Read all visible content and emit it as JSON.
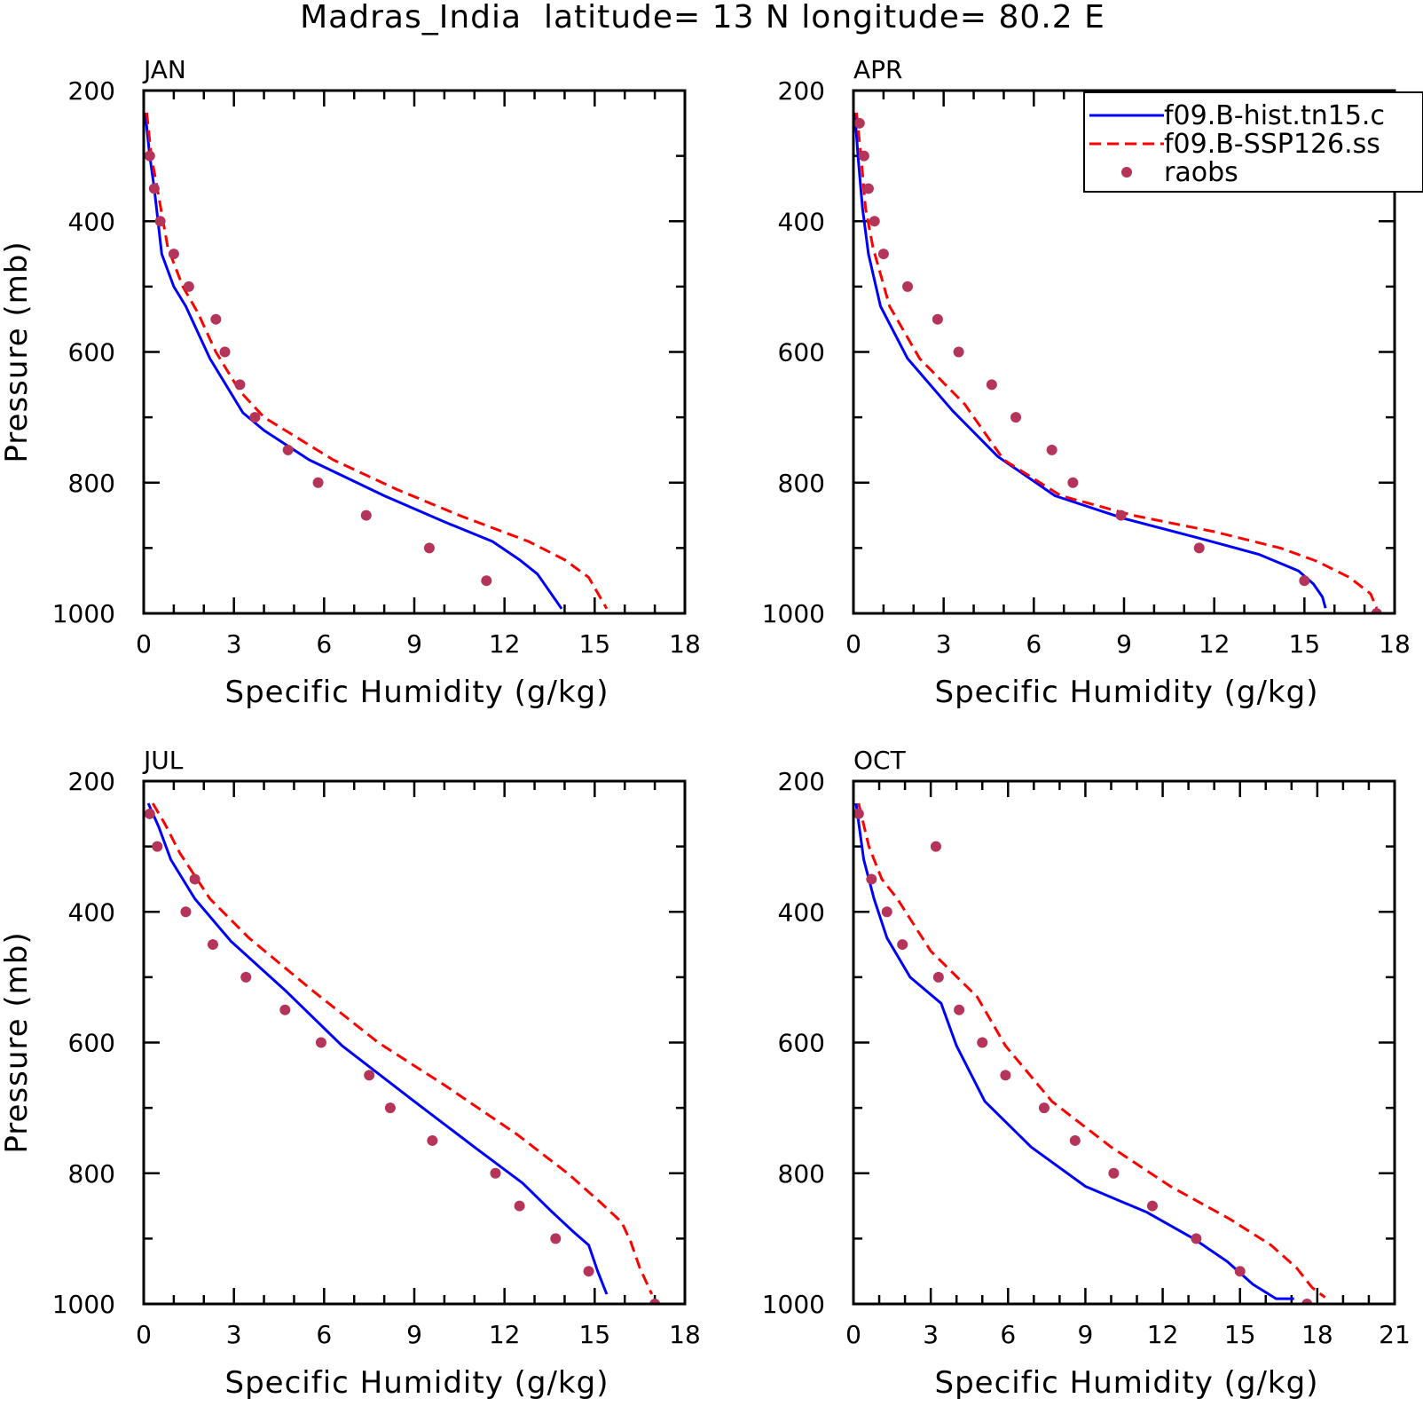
{
  "title": "Madras_India  latitude= 13 N longitude= 80.2 E",
  "legend": {
    "entries": [
      {
        "label": "f09.B-hist.tn15.c",
        "style": "solid",
        "color": "#0000ff"
      },
      {
        "label": "f09.B-SSP126.ss",
        "style": "dashed",
        "color": "#ff0000"
      },
      {
        "label": "raobs",
        "style": "marker",
        "color": "#b5345a"
      }
    ]
  },
  "colors": {
    "hist": "#0000ff",
    "ssp": "#ff0000",
    "raobs": "#b5345a"
  },
  "chart_data": [
    {
      "type": "line",
      "panel": "JAN",
      "xlabel": "Specific Humidity (g/kg)",
      "ylabel": "Pressure (mb)",
      "xlim": [
        0,
        18
      ],
      "ylim": [
        200,
        1000
      ],
      "y_inverted": true,
      "xticks": [
        0,
        3,
        6,
        9,
        12,
        15,
        18
      ],
      "yticks": [
        200,
        400,
        600,
        800,
        1000
      ],
      "series": [
        {
          "name": "f09.B-hist.tn15.c",
          "style": "solid",
          "x": [
            0.05,
            0.2,
            0.35,
            0.6,
            1.0,
            1.4,
            2.2,
            3.3,
            4.0,
            5.5,
            8.0,
            10.0,
            11.6,
            12.5,
            13.1,
            13.9
          ],
          "y": [
            234,
            300,
            350,
            450,
            500,
            530,
            610,
            693,
            720,
            765,
            820,
            860,
            890,
            918,
            940,
            993
          ]
        },
        {
          "name": "f09.B-SSP126.ss",
          "style": "dashed",
          "x": [
            0.1,
            0.25,
            0.45,
            0.8,
            1.3,
            1.8,
            2.4,
            3.2,
            4.0,
            6.3,
            8.4,
            10.5,
            12.8,
            14.0,
            14.8,
            15.4
          ],
          "y": [
            234,
            300,
            350,
            440,
            500,
            540,
            600,
            660,
            700,
            765,
            810,
            850,
            890,
            918,
            945,
            993
          ]
        },
        {
          "name": "raobs",
          "style": "marker",
          "x": [
            0.2,
            0.35,
            0.55,
            1.0,
            1.5,
            2.4,
            2.7,
            3.2,
            3.7,
            4.8,
            5.8,
            7.4,
            9.5,
            11.4
          ],
          "y": [
            300,
            350,
            400,
            450,
            500,
            550,
            600,
            650,
            700,
            750,
            800,
            850,
            900,
            950
          ]
        }
      ]
    },
    {
      "type": "line",
      "panel": "APR",
      "xlabel": "Specific Humidity (g/kg)",
      "ylabel": "",
      "xlim": [
        0,
        18
      ],
      "ylim": [
        200,
        1000
      ],
      "y_inverted": true,
      "xticks": [
        0,
        3,
        6,
        9,
        12,
        15,
        18
      ],
      "yticks": [
        200,
        400,
        600,
        800,
        1000
      ],
      "series": [
        {
          "name": "f09.B-hist.tn15.c",
          "style": "solid",
          "x": [
            0.05,
            0.15,
            0.3,
            0.5,
            0.9,
            1.8,
            3.3,
            4.8,
            6.7,
            9.0,
            11.5,
            13.5,
            14.8,
            15.3,
            15.6,
            15.7
          ],
          "y": [
            234,
            300,
            380,
            450,
            530,
            610,
            690,
            760,
            820,
            855,
            885,
            910,
            935,
            955,
            975,
            992
          ]
        },
        {
          "name": "f09.B-SSP126.ss",
          "style": "dashed",
          "x": [
            0.1,
            0.25,
            0.4,
            0.65,
            1.2,
            2.2,
            3.7,
            5.0,
            6.9,
            9.3,
            12.0,
            14.2,
            15.4,
            16.5,
            17.2,
            17.4
          ],
          "y": [
            234,
            300,
            380,
            440,
            530,
            610,
            680,
            765,
            820,
            850,
            875,
            900,
            920,
            945,
            970,
            992
          ]
        },
        {
          "name": "raobs",
          "style": "marker",
          "x": [
            0.2,
            0.35,
            0.5,
            0.7,
            1.0,
            1.8,
            2.8,
            3.5,
            4.6,
            5.4,
            6.6,
            7.3,
            8.9,
            11.5,
            15.0,
            17.4
          ],
          "y": [
            250,
            300,
            350,
            400,
            450,
            500,
            550,
            600,
            650,
            700,
            750,
            800,
            850,
            900,
            950,
            1000
          ]
        }
      ]
    },
    {
      "type": "line",
      "panel": "JUL",
      "xlabel": "Specific Humidity (g/kg)",
      "ylabel": "Pressure (mb)",
      "xlim": [
        0,
        18
      ],
      "ylim": [
        200,
        1000
      ],
      "y_inverted": true,
      "xticks": [
        0,
        3,
        6,
        9,
        12,
        15,
        18
      ],
      "yticks": [
        200,
        400,
        600,
        800,
        1000
      ],
      "series": [
        {
          "name": "f09.B-hist.tn15.c",
          "style": "solid",
          "x": [
            0.15,
            0.5,
            0.9,
            1.7,
            2.9,
            4.7,
            6.6,
            9.0,
            11.0,
            12.6,
            13.6,
            14.3,
            14.8,
            15.1,
            15.4
          ],
          "y": [
            234,
            270,
            320,
            380,
            445,
            520,
            605,
            690,
            760,
            815,
            860,
            890,
            910,
            950,
            985
          ]
        },
        {
          "name": "f09.B-SSP126.ss",
          "style": "dashed",
          "x": [
            0.3,
            0.7,
            1.2,
            2.2,
            3.5,
            5.6,
            7.8,
            10.0,
            12.4,
            14.1,
            15.2,
            15.9,
            16.2,
            16.5,
            16.9
          ],
          "y": [
            234,
            265,
            310,
            380,
            440,
            520,
            600,
            665,
            740,
            800,
            845,
            875,
            905,
            945,
            985
          ]
        },
        {
          "name": "raobs",
          "style": "marker",
          "x": [
            0.2,
            0.45,
            1.7,
            1.4,
            2.3,
            3.4,
            4.7,
            5.9,
            7.5,
            8.2,
            9.6,
            11.7,
            12.5,
            13.7,
            14.8,
            17.0
          ],
          "y": [
            250,
            300,
            350,
            400,
            450,
            500,
            550,
            600,
            650,
            700,
            750,
            800,
            850,
            900,
            950,
            1000
          ]
        }
      ]
    },
    {
      "type": "line",
      "panel": "OCT",
      "xlabel": "Specific Humidity (g/kg)",
      "ylabel": "",
      "xlim": [
        0,
        21
      ],
      "ylim": [
        200,
        1000
      ],
      "y_inverted": true,
      "xticks": [
        0,
        3,
        6,
        9,
        12,
        15,
        18,
        21
      ],
      "yticks": [
        200,
        400,
        600,
        800,
        1000
      ],
      "series": [
        {
          "name": "f09.B-hist.tn15.c",
          "style": "solid",
          "x": [
            0.1,
            0.4,
            0.8,
            1.3,
            2.2,
            3.4,
            4.0,
            5.1,
            6.9,
            9.0,
            11.4,
            13.2,
            14.5,
            15.5,
            16.4,
            17.1
          ],
          "y": [
            234,
            320,
            380,
            440,
            500,
            540,
            605,
            690,
            760,
            820,
            860,
            900,
            935,
            970,
            992,
            992
          ]
        },
        {
          "name": "f09.B-SSP126.ss",
          "style": "dashed",
          "x": [
            0.2,
            0.6,
            1.1,
            1.7,
            3.0,
            4.8,
            5.9,
            7.7,
            10.0,
            12.3,
            14.6,
            16.2,
            17.2,
            17.8,
            18.3
          ],
          "y": [
            234,
            300,
            350,
            380,
            460,
            530,
            605,
            690,
            760,
            820,
            870,
            910,
            945,
            975,
            990
          ]
        },
        {
          "name": "raobs",
          "style": "marker",
          "x": [
            0.2,
            3.2,
            0.7,
            1.3,
            1.9,
            3.3,
            4.1,
            5.0,
            5.9,
            7.4,
            8.6,
            10.1,
            11.6,
            13.3,
            15.0,
            17.6
          ],
          "y": [
            250,
            300,
            350,
            400,
            450,
            500,
            550,
            600,
            650,
            700,
            750,
            800,
            850,
            900,
            950,
            1000
          ]
        }
      ]
    }
  ]
}
